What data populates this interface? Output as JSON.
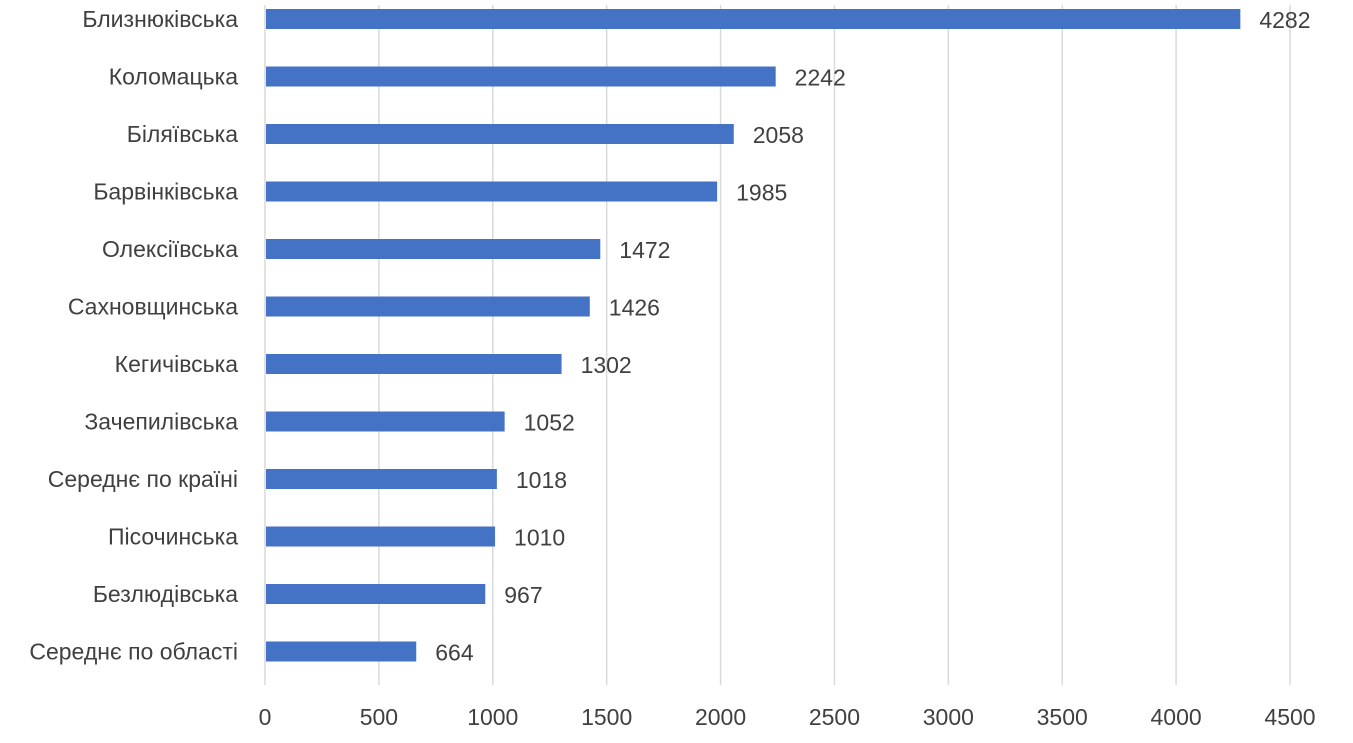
{
  "colors": {
    "bar": "#4472c4",
    "grid": "#d9d9d9",
    "text": "#404040"
  },
  "chart_data": {
    "type": "bar",
    "orientation": "horizontal",
    "categories": [
      "Близнюківська",
      "Коломацька",
      "Біляївська",
      "Барвінківська",
      "Олексіївська",
      "Сахновщинська",
      "Кегичівська",
      "Зачепилівська",
      "Середнє по країні",
      "Пісочинська",
      "Безлюдівська",
      "Середнє по області"
    ],
    "values": [
      4282,
      2242,
      2058,
      1985,
      1472,
      1426,
      1302,
      1052,
      1018,
      1010,
      967,
      664
    ],
    "data_labels": [
      "4282",
      "2242",
      "2058",
      "1985",
      "1472",
      "1426",
      "1302",
      "1052",
      "1018",
      "1010",
      "967",
      "664"
    ],
    "x_ticks": [
      "0",
      "500",
      "1000",
      "1500",
      "2000",
      "2500",
      "3000",
      "3500",
      "4000",
      "4500"
    ],
    "xlim": [
      0,
      4500
    ],
    "grid": true,
    "legend": "none"
  }
}
